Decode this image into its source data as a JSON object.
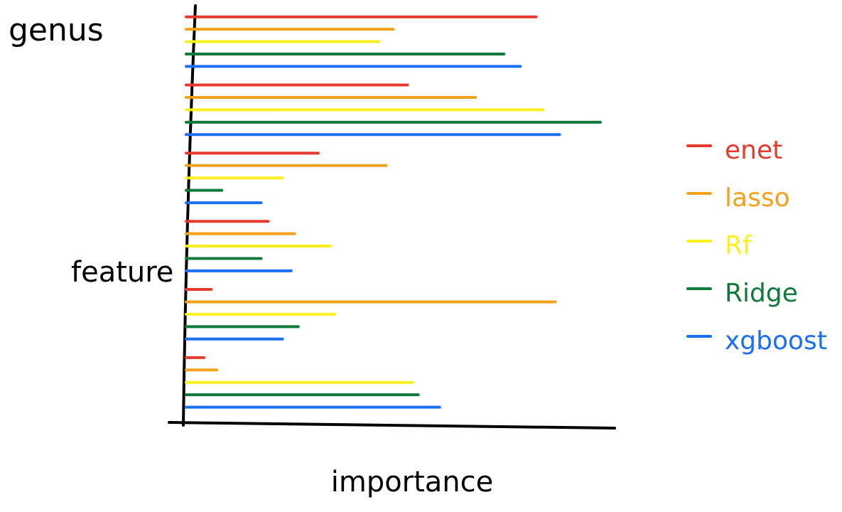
{
  "chart_data": {
    "type": "bar",
    "orientation": "horizontal",
    "title": "genus",
    "y_label": "feature",
    "x_label": "importance",
    "categories": [
      null,
      null,
      null,
      null,
      null,
      null
    ],
    "xlim": [
      0,
      600
    ],
    "legend": "right",
    "series": [
      {
        "name": "enet",
        "color": "#e8392e",
        "values": [
          490,
          310,
          185,
          115,
          35,
          25
        ]
      },
      {
        "name": "lasso",
        "color": "#f5a01a",
        "values": [
          290,
          405,
          280,
          152,
          517,
          43
        ]
      },
      {
        "name": "Rf",
        "color": "#fbf01e",
        "values": [
          270,
          500,
          135,
          202,
          208,
          317
        ]
      },
      {
        "name": "Ridge",
        "color": "#0f7a3a",
        "values": [
          445,
          580,
          50,
          105,
          157,
          325
        ]
      },
      {
        "name": "xgboost",
        "color": "#1a6ff2",
        "values": [
          468,
          523,
          105,
          147,
          135,
          355
        ]
      }
    ]
  }
}
